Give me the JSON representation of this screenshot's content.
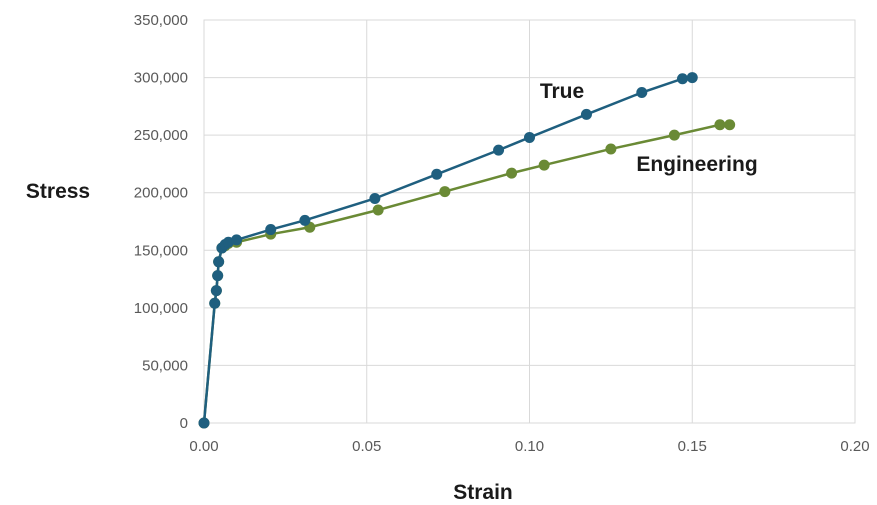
{
  "chart_data": {
    "type": "scatter",
    "xlabel": "Strain",
    "ylabel": "Stress",
    "xlim": [
      0,
      0.2
    ],
    "ylim": [
      0,
      350000
    ],
    "x_ticks": [
      "0.00",
      "0.05",
      "0.10",
      "0.15",
      "0.20"
    ],
    "y_ticks": [
      "0",
      "50,000",
      "100,000",
      "150,000",
      "200,000",
      "250,000",
      "300,000",
      "350,000"
    ],
    "grid": true,
    "series": [
      {
        "name": "True",
        "color": "#1f5f7f",
        "points": [
          [
            0.0,
            0
          ],
          [
            0.0033,
            104000
          ],
          [
            0.0038,
            115000
          ],
          [
            0.0042,
            128000
          ],
          [
            0.0045,
            140000
          ],
          [
            0.0055,
            152000
          ],
          [
            0.0065,
            155000
          ],
          [
            0.0075,
            157000
          ],
          [
            0.01,
            159000
          ],
          [
            0.0205,
            168000
          ],
          [
            0.031,
            176000
          ],
          [
            0.0525,
            195000
          ],
          [
            0.0715,
            216000
          ],
          [
            0.0905,
            237000
          ],
          [
            0.1,
            248000
          ],
          [
            0.1175,
            268000
          ],
          [
            0.1345,
            287000
          ],
          [
            0.147,
            299000
          ],
          [
            0.15,
            300000
          ]
        ]
      },
      {
        "name": "Engineering",
        "color": "#6a8a35",
        "points": [
          [
            0.0,
            0
          ],
          [
            0.0033,
            104000
          ],
          [
            0.0038,
            115000
          ],
          [
            0.0042,
            128000
          ],
          [
            0.0045,
            140000
          ],
          [
            0.0055,
            152000
          ],
          [
            0.0065,
            154000
          ],
          [
            0.0075,
            156000
          ],
          [
            0.01,
            157000
          ],
          [
            0.0205,
            164000
          ],
          [
            0.0325,
            170000
          ],
          [
            0.0535,
            185000
          ],
          [
            0.074,
            201000
          ],
          [
            0.0945,
            217000
          ],
          [
            0.1045,
            224000
          ],
          [
            0.125,
            238000
          ],
          [
            0.1445,
            250000
          ],
          [
            0.1585,
            259000
          ],
          [
            0.1615,
            259000
          ]
        ]
      }
    ]
  }
}
